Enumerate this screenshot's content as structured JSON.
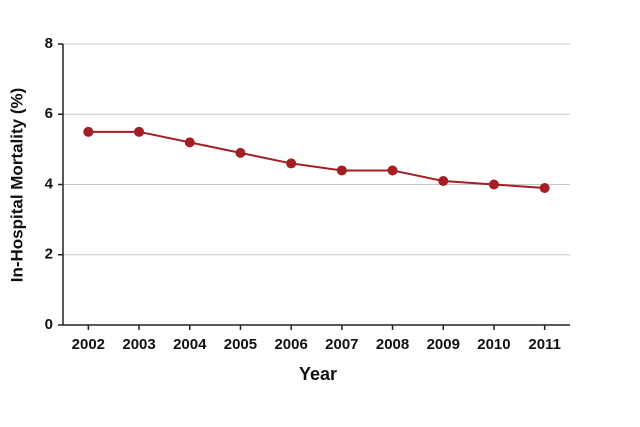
{
  "chart_data": {
    "type": "line",
    "x_label": "Year",
    "y_label": "In-Hospital Mortality (%)",
    "categories": [
      "2002",
      "2003",
      "2004",
      "2005",
      "2006",
      "2007",
      "2008",
      "2009",
      "2010",
      "2011"
    ],
    "values": [
      5.5,
      5.5,
      5.2,
      4.9,
      4.6,
      4.4,
      4.4,
      4.1,
      4.0,
      3.9
    ],
    "color": "#a31f24",
    "ylim": [
      0,
      8
    ],
    "yticks": [
      0,
      2,
      4,
      6,
      8
    ],
    "grid": true
  }
}
